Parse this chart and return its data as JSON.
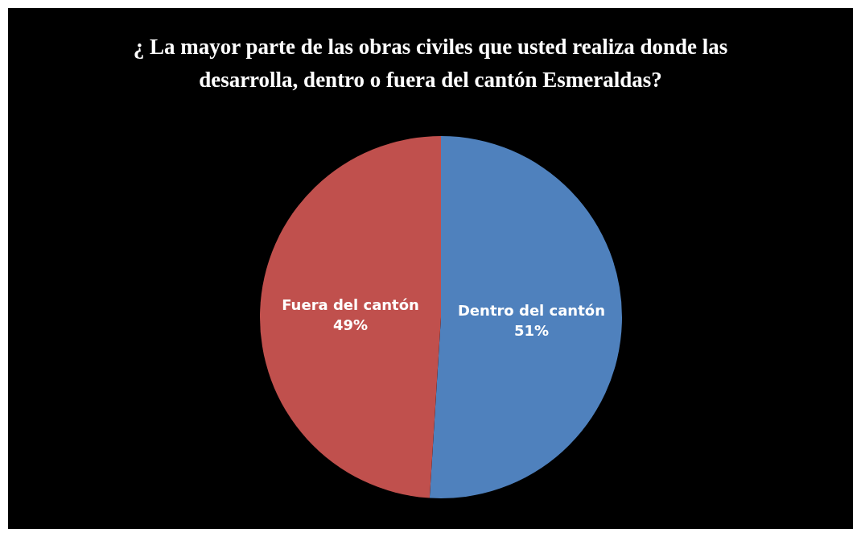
{
  "chart_data": {
    "type": "pie",
    "title": "¿ La mayor parte de las obras civiles que usted realiza donde las desarrolla, dentro o fuera del cantón Esmeraldas?",
    "categories": [
      "Dentro del cantón",
      "Fuera del cantón"
    ],
    "values": [
      51,
      49
    ],
    "value_labels": [
      "51%",
      "49%"
    ],
    "colors": [
      "#4f81bd",
      "#c0504d"
    ]
  }
}
